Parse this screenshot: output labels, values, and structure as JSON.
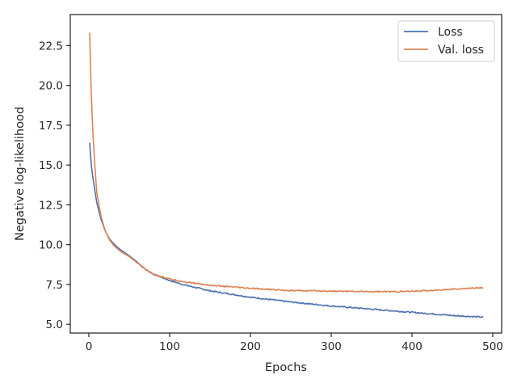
{
  "chart_data": {
    "type": "line",
    "title": "",
    "xlabel": "Epochs",
    "ylabel": "Negative log-likelihood",
    "xlim": [
      -23,
      511
    ],
    "ylim": [
      4.45,
      24.45
    ],
    "xticks": [
      0,
      100,
      200,
      300,
      400,
      500
    ],
    "yticks": [
      5.0,
      7.5,
      10.0,
      12.5,
      15.0,
      17.5,
      20.0,
      22.5
    ],
    "xtick_labels": [
      "0",
      "100",
      "200",
      "300",
      "400",
      "500"
    ],
    "ytick_labels": [
      "5.0",
      "7.5",
      "10.0",
      "12.5",
      "15.0",
      "17.5",
      "20.0",
      "22.5"
    ],
    "grid": false,
    "legend_position": "top-right",
    "series": [
      {
        "name": "Loss",
        "color": "#4c72b0",
        "x": [
          1,
          3,
          5,
          8,
          10,
          15,
          20,
          25,
          30,
          35,
          40,
          50,
          60,
          70,
          80,
          100,
          120,
          150,
          200,
          250,
          300,
          350,
          400,
          450,
          488
        ],
        "y": [
          16.4,
          15.0,
          14.2,
          13.2,
          12.6,
          11.6,
          10.9,
          10.4,
          10.1,
          9.85,
          9.65,
          9.3,
          8.9,
          8.45,
          8.15,
          7.75,
          7.45,
          7.1,
          6.7,
          6.4,
          6.15,
          5.95,
          5.75,
          5.55,
          5.45
        ],
        "noise": 0.04
      },
      {
        "name": "Val. loss",
        "color": "#dd8452",
        "x": [
          1,
          3,
          5,
          8,
          10,
          15,
          20,
          25,
          30,
          35,
          40,
          50,
          60,
          70,
          80,
          100,
          120,
          150,
          200,
          250,
          300,
          350,
          390,
          420,
          450,
          488
        ],
        "y": [
          23.3,
          19.5,
          17.0,
          14.5,
          13.2,
          11.8,
          10.9,
          10.35,
          10.0,
          9.75,
          9.55,
          9.25,
          8.85,
          8.45,
          8.15,
          7.85,
          7.65,
          7.45,
          7.25,
          7.12,
          7.08,
          7.05,
          7.05,
          7.12,
          7.2,
          7.3
        ],
        "noise": 0.04
      }
    ]
  }
}
